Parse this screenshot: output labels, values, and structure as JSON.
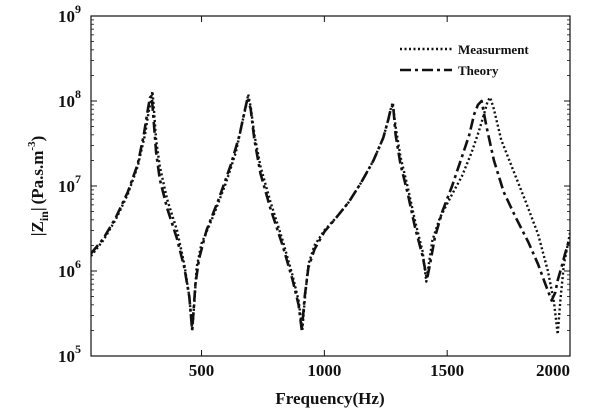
{
  "chart_data": {
    "type": "line",
    "title": "",
    "xlabel": "Frequency(Hz)",
    "ylabel": {
      "abs_bar_left": "|",
      "z": "Z",
      "sub": "in",
      "abs_bar_right": "|",
      "unit_open": "(Pa.s.m",
      "unit_sup": "-3",
      "unit_close": ")"
    },
    "xlim": [
      50,
      2000
    ],
    "ylim": [
      100000,
      1000000000
    ],
    "y_scale": "log",
    "grid": false,
    "legend_position": "top-right",
    "x_ticks": [
      500,
      1000,
      1500,
      2000
    ],
    "x_tick_labels": [
      "500",
      "1000",
      "1500",
      "2000"
    ],
    "y_ticks": [
      100000,
      1000000,
      10000000,
      100000000,
      1000000000
    ],
    "y_tick_labels": [
      {
        "base": "10",
        "exp": "5"
      },
      {
        "base": "10",
        "exp": "6"
      },
      {
        "base": "10",
        "exp": "7"
      },
      {
        "base": "10",
        "exp": "8"
      },
      {
        "base": "10",
        "exp": "9"
      }
    ],
    "series": [
      {
        "name": "Measurment",
        "style": "dotted",
        "color": "#111111",
        "x": [
          50,
          100,
          150,
          200,
          240,
          270,
          285,
          295,
          300,
          305,
          315,
          330,
          360,
          400,
          430,
          450,
          462,
          470,
          480,
          500,
          550,
          600,
          640,
          665,
          680,
          690,
          700,
          715,
          740,
          780,
          830,
          870,
          895,
          910,
          920,
          935,
          960,
          1000,
          1050,
          1100,
          1150,
          1200,
          1240,
          1260,
          1270,
          1278,
          1290,
          1310,
          1340,
          1370,
          1400,
          1415,
          1425,
          1440,
          1470,
          1520,
          1560,
          1600,
          1630,
          1650,
          1665,
          1675,
          1690,
          1720,
          1770,
          1820,
          1870,
          1910,
          1935,
          1950,
          1960,
          1975,
          2000
        ],
        "y": [
          1500000,
          2300000,
          4000000,
          8000000,
          17000000,
          40000000,
          75000000,
          105000000,
          130000000,
          90000000,
          35000000,
          17000000,
          7000000,
          3000000,
          1200000,
          500000,
          200000,
          400000,
          1100000,
          2100000,
          4600000,
          11000000,
          25000000,
          55000000,
          85000000,
          120000000,
          85000000,
          40000000,
          17000000,
          6600000,
          2300000,
          900000,
          450000,
          200000,
          450000,
          1200000,
          2000000,
          3000000,
          4300000,
          6500000,
          11000000,
          20000000,
          37000000,
          60000000,
          80000000,
          95000000,
          50000000,
          22000000,
          9500000,
          3800000,
          1700000,
          750000,
          1200000,
          2300000,
          4200000,
          8000000,
          13000000,
          25000000,
          45000000,
          70000000,
          100000000,
          110000000,
          80000000,
          35000000,
          15000000,
          6500000,
          2700000,
          1000000,
          430000,
          180000,
          430000,
          1200000,
          2800000
        ]
      },
      {
        "name": "Theory",
        "style": "dashdot",
        "color": "#111111",
        "x": [
          50,
          100,
          150,
          200,
          240,
          265,
          280,
          290,
          297,
          305,
          315,
          330,
          360,
          400,
          430,
          450,
          462,
          475,
          490,
          520,
          570,
          620,
          655,
          675,
          688,
          700,
          715,
          740,
          780,
          830,
          870,
          895,
          908,
          920,
          935,
          960,
          1000,
          1050,
          1100,
          1150,
          1200,
          1240,
          1260,
          1270,
          1280,
          1290,
          1310,
          1340,
          1370,
          1400,
          1418,
          1430,
          1450,
          1480,
          1520,
          1560,
          1590,
          1610,
          1625,
          1640,
          1660,
          1690,
          1730,
          1780,
          1830,
          1870,
          1900,
          1925,
          1940,
          1950,
          1965,
          1980,
          2000
        ],
        "y": [
          1600000,
          2400000,
          4200000,
          8500000,
          18000000,
          40000000,
          75000000,
          110000000,
          115000000,
          60000000,
          25000000,
          12000000,
          5500000,
          2400000,
          1100000,
          500000,
          200000,
          700000,
          1400000,
          3000000,
          7000000,
          18000000,
          40000000,
          75000000,
          110000000,
          80000000,
          35000000,
          14000000,
          5500000,
          2000000,
          800000,
          400000,
          200000,
          500000,
          1100000,
          1800000,
          2900000,
          4300000,
          6500000,
          11000000,
          20000000,
          37000000,
          60000000,
          80000000,
          90000000,
          40000000,
          18000000,
          8000000,
          3200000,
          1500000,
          800000,
          1200000,
          2500000,
          5000000,
          10000000,
          22000000,
          40000000,
          70000000,
          90000000,
          100000000,
          50000000,
          20000000,
          8500000,
          4200000,
          2200000,
          1200000,
          700000,
          450000,
          560000,
          780000,
          1100000,
          1600000,
          2500000
        ]
      }
    ]
  }
}
